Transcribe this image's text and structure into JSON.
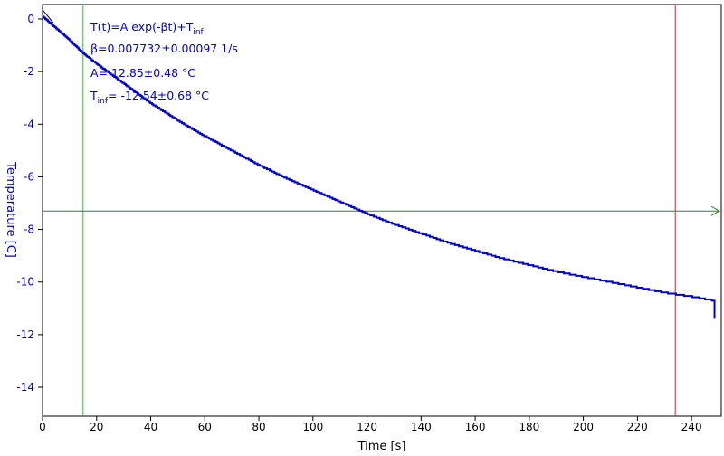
{
  "chart_data": {
    "type": "line",
    "xlabel": "Time [s]",
    "ylabel": "Temperature [C]",
    "xlim": [
      0,
      251
    ],
    "ylim": [
      -15.1,
      0.55
    ],
    "xticks": [
      0,
      20,
      40,
      60,
      80,
      100,
      120,
      140,
      160,
      180,
      200,
      220,
      240
    ],
    "yticks": [
      0,
      -2,
      -4,
      -6,
      -8,
      -10,
      -12,
      -14
    ],
    "annotations": {
      "formula": {
        "main": "T(t)=A exp(-βt)+T",
        "sub": "inf"
      },
      "beta": "β=0.007732±0.00097 1/s",
      "amp": "A= 12.85±0.48 °C",
      "tinf": {
        "main": "T",
        "sub": "inf",
        "rest": "= -12.54±0.68 °C"
      }
    },
    "cursors": {
      "green_vertical_x": 15,
      "red_vertical_x": 234,
      "horizontal_y": -7.3
    },
    "series": [
      {
        "x": [
          0,
          5,
          10,
          15,
          20,
          30,
          40,
          50,
          60,
          70,
          80,
          90,
          100,
          110,
          120,
          130,
          140,
          150,
          160,
          170,
          180,
          190,
          200,
          210,
          220,
          230,
          240,
          248
        ],
        "y": [
          0.1,
          -0.35,
          -0.8,
          -1.3,
          -1.7,
          -2.45,
          -3.2,
          -3.85,
          -4.45,
          -5.0,
          -5.55,
          -6.05,
          -6.5,
          -6.95,
          -7.4,
          -7.8,
          -8.15,
          -8.5,
          -8.8,
          -9.1,
          -9.35,
          -9.6,
          -9.8,
          -10.0,
          -10.2,
          -10.4,
          -10.55,
          -10.7
        ],
        "color": "#0000cc"
      }
    ],
    "colors": {
      "axis_text": "#0000cc",
      "green_line": "#22cc22",
      "red_line": "#dd2222",
      "horizontal_line": "#228822",
      "tick_text": "#000000"
    }
  }
}
